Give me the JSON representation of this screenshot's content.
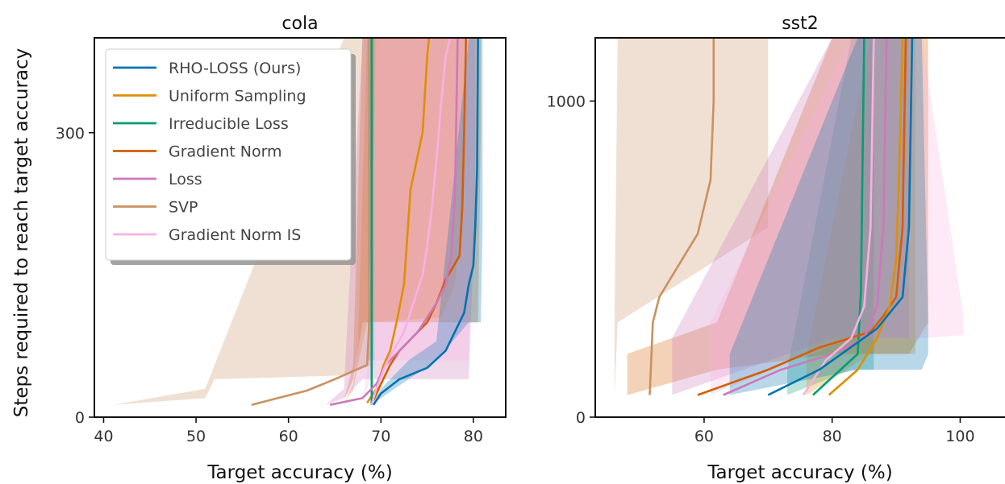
{
  "figure": {
    "ylabel": "Steps required to reach target accuracy"
  },
  "legend": {
    "placement": "top-left (cola panel)",
    "items": [
      {
        "name": "RHO-LOSS (Ours)",
        "color": "#0173b2"
      },
      {
        "name": "Uniform Sampling",
        "color": "#de8f05"
      },
      {
        "name": "Irreducible Loss",
        "color": "#029e73"
      },
      {
        "name": "Gradient Norm",
        "color": "#d55e00"
      },
      {
        "name": "Loss",
        "color": "#cc78bc"
      },
      {
        "name": "SVP",
        "color": "#ca9161"
      },
      {
        "name": "Gradient Norm IS",
        "color": "#fbafe4"
      }
    ]
  },
  "chart_data": [
    {
      "type": "line",
      "title": "cola",
      "xlabel": "Target accuracy (%)",
      "ylabel": "Steps required to reach target accuracy",
      "xlim": [
        39,
        83.5
      ],
      "ylim": [
        0,
        400
      ],
      "xticks": [
        40,
        50,
        60,
        70,
        80
      ],
      "yticks": [
        0,
        300
      ],
      "grid": false,
      "series": [
        {
          "name": "SVP",
          "color": "#ca9161",
          "points": [
            [
              56,
              13
            ],
            [
              62,
              28
            ],
            [
              65,
              40
            ],
            [
              68.5,
              55
            ],
            [
              69,
              150
            ],
            [
              69,
              400
            ]
          ],
          "band": [
            [
              41,
              13,
              13
            ],
            [
              51,
              20,
              30
            ],
            [
              52,
              40,
              55
            ],
            [
              66,
              44,
              400
            ],
            [
              69,
              55,
              400
            ]
          ]
        },
        {
          "name": "Uniform Sampling",
          "color": "#de8f05",
          "points": [
            [
              68.5,
              15
            ],
            [
              69.5,
              30
            ],
            [
              70.3,
              55
            ],
            [
              71,
              70
            ],
            [
              71.8,
              105
            ],
            [
              72.5,
              140
            ],
            [
              73.2,
              240
            ],
            [
              74.5,
              300
            ],
            [
              75,
              380
            ],
            [
              75.2,
              400
            ]
          ],
          "band": [
            [
              66,
              15,
              15
            ],
            [
              67,
              28,
              34
            ],
            [
              67.5,
              55,
              70
            ],
            [
              68.5,
              100,
              400
            ],
            [
              76.5,
              105,
              400
            ],
            [
              78,
              140,
              400
            ],
            [
              79,
              240,
              400
            ]
          ]
        },
        {
          "name": "Irreducible Loss",
          "color": "#029e73",
          "points": [
            [
              69,
              13
            ],
            [
              69,
              60
            ],
            [
              69,
              400
            ]
          ],
          "band": [
            [
              68.6,
              13,
              13
            ],
            [
              68.6,
              60,
              400
            ],
            [
              69.3,
              60,
              400
            ]
          ]
        },
        {
          "name": "Gradient Norm",
          "color": "#d55e00",
          "points": [
            [
              69.2,
              18
            ],
            [
              70,
              35
            ],
            [
              71,
              55
            ],
            [
              72,
              70
            ],
            [
              73.5,
              85
            ],
            [
              75,
              100
            ],
            [
              76,
              120
            ],
            [
              77,
              145
            ],
            [
              78.5,
              170
            ],
            [
              78.8,
              220
            ],
            [
              79,
              300
            ],
            [
              79.2,
              400
            ]
          ],
          "band": [
            [
              66,
              18,
              18
            ],
            [
              67,
              40,
              55
            ],
            [
              68,
              100,
              400
            ],
            [
              80.5,
              100,
              400
            ],
            [
              80.8,
              300,
              400
            ]
          ]
        },
        {
          "name": "Loss",
          "color": "#cc78bc",
          "points": [
            [
              64.5,
              13
            ],
            [
              68,
              20
            ],
            [
              69.5,
              35
            ],
            [
              70.5,
              55
            ],
            [
              72,
              70
            ],
            [
              74,
              90
            ],
            [
              76,
              120
            ],
            [
              77,
              140
            ],
            [
              77.6,
              170
            ],
            [
              78,
              230
            ],
            [
              78.3,
              400
            ]
          ],
          "band": [
            [
              64,
              13,
              13
            ],
            [
              66,
              20,
              30
            ],
            [
              68,
              40,
              400
            ],
            [
              79.5,
              40,
              400
            ],
            [
              80.2,
              230,
              400
            ]
          ]
        },
        {
          "name": "Gradient Norm IS",
          "color": "#fbafe4",
          "points": [
            [
              69,
              13
            ],
            [
              69.5,
              30
            ],
            [
              70.5,
              55
            ],
            [
              72.5,
              90
            ],
            [
              73.5,
              120
            ],
            [
              74.5,
              150
            ],
            [
              75,
              180
            ],
            [
              75.5,
              220
            ],
            [
              76,
              270
            ],
            [
              76.5,
              330
            ],
            [
              77,
              380
            ],
            [
              77.5,
              400
            ]
          ],
          "band": [
            [
              68,
              13,
              13
            ],
            [
              68.5,
              30,
              50
            ],
            [
              69.5,
              60,
              400
            ],
            [
              79.5,
              60,
              400
            ],
            [
              80,
              280,
              400
            ]
          ]
        },
        {
          "name": "RHO-LOSS (Ours)",
          "color": "#0173b2",
          "points": [
            [
              69.2,
              13
            ],
            [
              70,
              25
            ],
            [
              72,
              40
            ],
            [
              75,
              52
            ],
            [
              77,
              70
            ],
            [
              78,
              90
            ],
            [
              79,
              110
            ],
            [
              79.5,
              140
            ],
            [
              80,
              160
            ],
            [
              80.2,
              200
            ],
            [
              80.4,
              260
            ],
            [
              80.5,
              400
            ]
          ],
          "band": [
            [
              69,
              13,
              13
            ],
            [
              70,
              20,
              30
            ],
            [
              73,
              40,
              60
            ],
            [
              76,
              60,
              80
            ],
            [
              79.5,
              100,
              400
            ],
            [
              80.8,
              100,
              400
            ],
            [
              81,
              200,
              400
            ]
          ]
        }
      ]
    },
    {
      "type": "line",
      "title": "sst2",
      "xlabel": "Target accuracy (%)",
      "ylabel": "",
      "xlim": [
        43,
        107
      ],
      "ylim": [
        0,
        1200
      ],
      "xticks": [
        60,
        80,
        100
      ],
      "yticks": [
        0,
        1000
      ],
      "grid": false,
      "series": [
        {
          "name": "SVP",
          "color": "#ca9161",
          "points": [
            [
              51.5,
              70
            ],
            [
              52,
              300
            ],
            [
              53,
              380
            ],
            [
              56,
              480
            ],
            [
              59,
              580
            ],
            [
              61,
              750
            ],
            [
              61.5,
              1000
            ],
            [
              61.5,
              1200
            ]
          ],
          "band": [
            [
              46,
              70,
              300
            ],
            [
              46.5,
              300,
              1200
            ],
            [
              70,
              600,
              1200
            ]
          ]
        },
        {
          "name": "Irreducible Loss",
          "color": "#029e73",
          "points": [
            [
              77,
              70
            ],
            [
              84,
              200
            ],
            [
              84.5,
              400
            ],
            [
              85,
              1200
            ]
          ],
          "band": [
            [
              73,
              70,
              150
            ],
            [
              83,
              150,
              1200
            ],
            [
              86.5,
              150,
              1200
            ]
          ]
        },
        {
          "name": "Gradient Norm",
          "color": "#d55e00",
          "points": [
            [
              59,
              70
            ],
            [
              70,
              150
            ],
            [
              78,
              220
            ],
            [
              86,
              270
            ],
            [
              88,
              320
            ],
            [
              90,
              380
            ],
            [
              91,
              600
            ],
            [
              91.5,
              1200
            ]
          ],
          "band": [
            [
              48,
              70,
              200
            ],
            [
              62,
              150,
              300
            ],
            [
              80,
              200,
              1200
            ],
            [
              92,
              200,
              1200
            ],
            [
              95,
              300,
              1200
            ]
          ]
        },
        {
          "name": "Uniform Sampling",
          "color": "#de8f05",
          "points": [
            [
              79.5,
              70
            ],
            [
              84,
              150
            ],
            [
              87,
              250
            ],
            [
              89,
              350
            ],
            [
              90,
              500
            ],
            [
              90.5,
              800
            ],
            [
              91,
              1200
            ]
          ],
          "band": [
            [
              76,
              70,
              200
            ],
            [
              86,
              200,
              1200
            ],
            [
              93,
              200,
              1200
            ]
          ]
        },
        {
          "name": "Loss",
          "color": "#cc78bc",
          "points": [
            [
              63,
              70
            ],
            [
              72,
              150
            ],
            [
              80,
              200
            ],
            [
              85,
              250
            ],
            [
              87,
              350
            ],
            [
              88,
              600
            ],
            [
              88.5,
              1200
            ]
          ],
          "band": [
            [
              55,
              70,
              250
            ],
            [
              80,
              250,
              1200
            ],
            [
              92,
              250,
              1200
            ]
          ]
        },
        {
          "name": "Gradient Norm IS",
          "color": "#fbafe4",
          "points": [
            [
              75.5,
              70
            ],
            [
              79,
              180
            ],
            [
              83,
              250
            ],
            [
              85,
              350
            ],
            [
              86,
              600
            ],
            [
              86.5,
              1200
            ]
          ],
          "band": [
            [
              61,
              70,
              300
            ],
            [
              83,
              250,
              1200
            ],
            [
              94,
              250,
              1200
            ],
            [
              100.5,
              260,
              320
            ]
          ]
        },
        {
          "name": "RHO-LOSS (Ours)",
          "color": "#0173b2",
          "points": [
            [
              70,
              70
            ],
            [
              78,
              150
            ],
            [
              87,
              280
            ],
            [
              91,
              380
            ],
            [
              92,
              600
            ],
            [
              92.5,
              1200
            ]
          ],
          "band": [
            [
              64,
              70,
              200
            ],
            [
              84,
              150,
              1200
            ],
            [
              94,
              150,
              1200
            ],
            [
              95,
              200,
              300
            ]
          ]
        }
      ]
    }
  ]
}
